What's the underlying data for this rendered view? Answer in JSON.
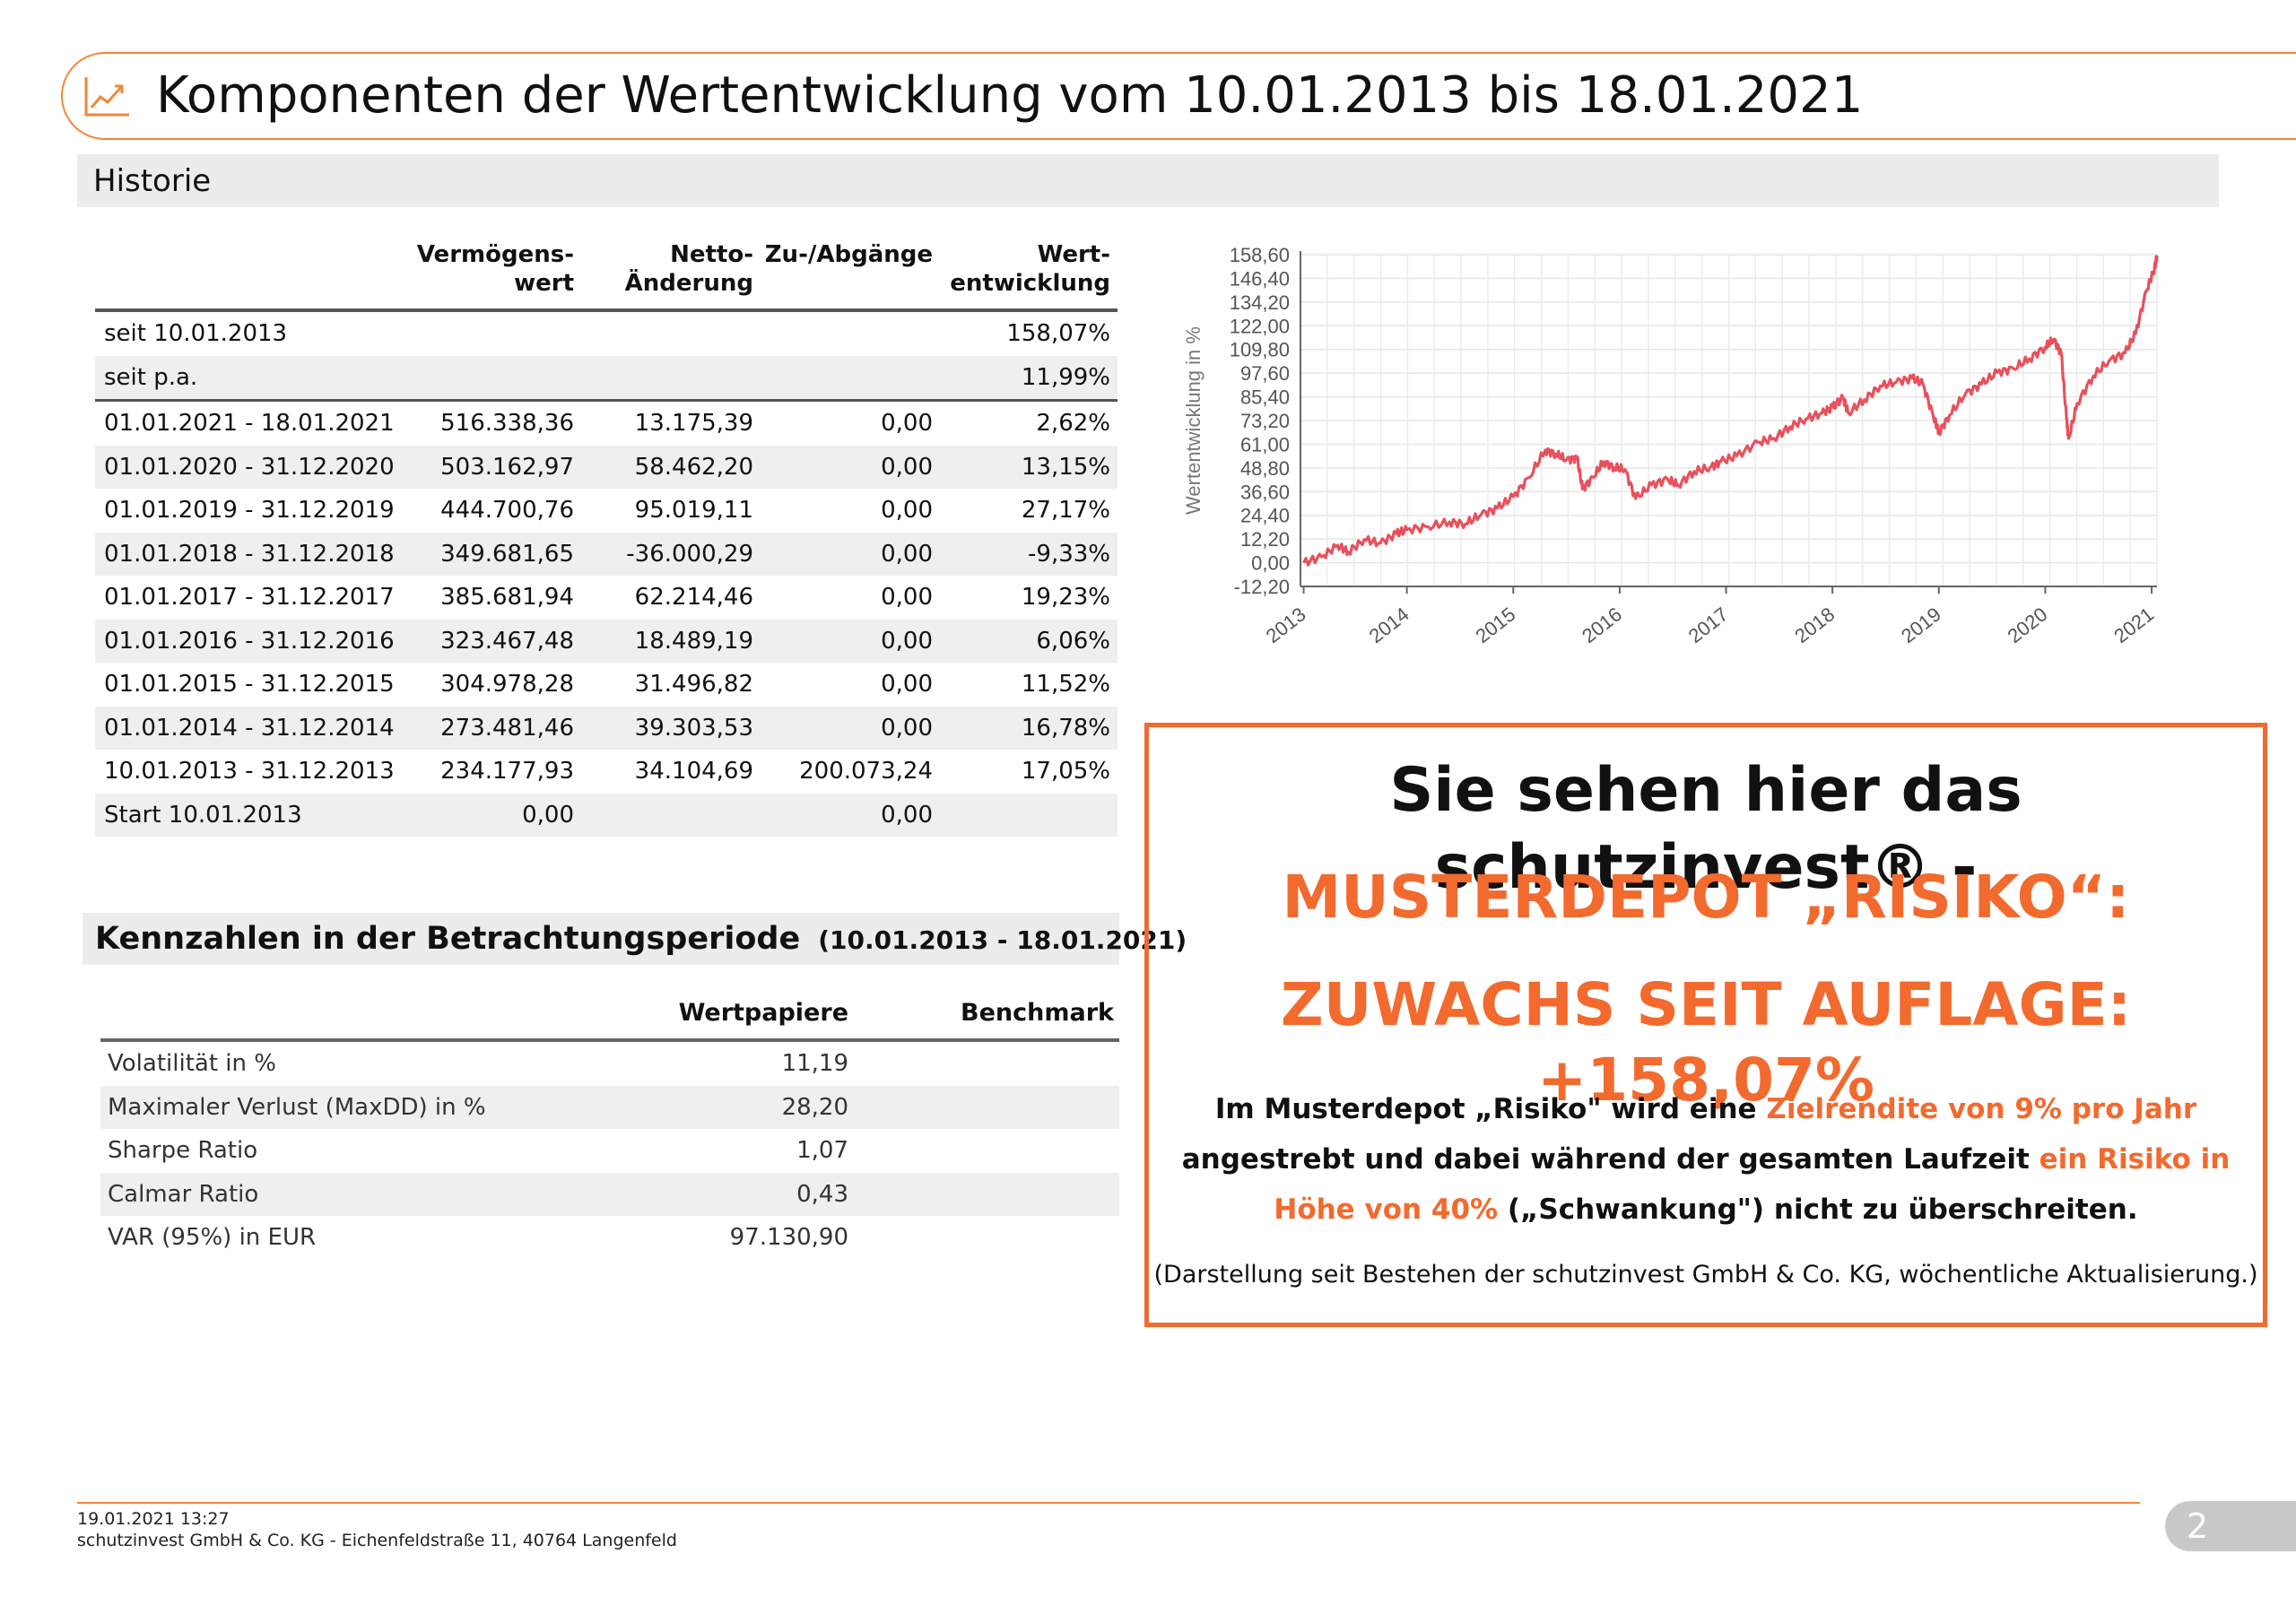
{
  "header": {
    "title": "Komponenten der Wertentwicklung vom 10.01.2013 bis 18.01.2021",
    "icon": "line-chart-icon"
  },
  "historie": {
    "title": "Historie",
    "columns": [
      "",
      "Vermögens-\nwert",
      "Netto-\nÄnderung",
      "Zu-/Abgänge",
      "Wert-\nentwicklung"
    ],
    "rows": [
      [
        "seit 10.01.2013",
        "",
        "",
        "",
        "158,07%"
      ],
      [
        "seit p.a.",
        "",
        "",
        "",
        "11,99%"
      ],
      [
        "01.01.2021 - 18.01.2021",
        "516.338,36",
        "13.175,39",
        "0,00",
        "2,62%"
      ],
      [
        "01.01.2020 - 31.12.2020",
        "503.162,97",
        "58.462,20",
        "0,00",
        "13,15%"
      ],
      [
        "01.01.2019 - 31.12.2019",
        "444.700,76",
        "95.019,11",
        "0,00",
        "27,17%"
      ],
      [
        "01.01.2018 - 31.12.2018",
        "349.681,65",
        "-36.000,29",
        "0,00",
        "-9,33%"
      ],
      [
        "01.01.2017 - 31.12.2017",
        "385.681,94",
        "62.214,46",
        "0,00",
        "19,23%"
      ],
      [
        "01.01.2016 - 31.12.2016",
        "323.467,48",
        "18.489,19",
        "0,00",
        "6,06%"
      ],
      [
        "01.01.2015 - 31.12.2015",
        "304.978,28",
        "31.496,82",
        "0,00",
        "11,52%"
      ],
      [
        "01.01.2014 - 31.12.2014",
        "273.481,46",
        "39.303,53",
        "0,00",
        "16,78%"
      ],
      [
        "10.01.2013 - 31.12.2013",
        "234.177,93",
        "34.104,69",
        "200.073,24",
        "17,05%"
      ],
      [
        "Start 10.01.2013",
        "0,00",
        "",
        "0,00",
        ""
      ]
    ]
  },
  "chart_data": {
    "type": "line",
    "title": "",
    "xlabel": "",
    "ylabel": "Wertentwicklung in %",
    "x_ticks": [
      "2013",
      "2014",
      "2015",
      "2016",
      "2017",
      "2018",
      "2019",
      "2020",
      "2021"
    ],
    "y_ticks": [
      "158,60",
      "146,40",
      "134,20",
      "122,00",
      "109,80",
      "97,60",
      "85,40",
      "73,20",
      "61,00",
      "48,80",
      "36,60",
      "24,40",
      "12,20",
      "0,00",
      "-12,20"
    ],
    "ylim": [
      -12.2,
      158.6
    ],
    "grid": true,
    "line_color": "#e8505b",
    "series": [
      {
        "values": [
          [
            2013.03,
            0.0
          ],
          [
            2013.2,
            3.0
          ],
          [
            2013.35,
            9.0
          ],
          [
            2013.45,
            5.5
          ],
          [
            2013.6,
            12.0
          ],
          [
            2013.75,
            10.0
          ],
          [
            2013.9,
            15.0
          ],
          [
            2014.0,
            17.0
          ],
          [
            2014.2,
            18.5
          ],
          [
            2014.4,
            21.0
          ],
          [
            2014.55,
            20.0
          ],
          [
            2014.7,
            25.0
          ],
          [
            2014.85,
            28.0
          ],
          [
            2015.0,
            34.0
          ],
          [
            2015.15,
            44.0
          ],
          [
            2015.3,
            58.0
          ],
          [
            2015.4,
            56.0
          ],
          [
            2015.5,
            53.0
          ],
          [
            2015.6,
            54.0
          ],
          [
            2015.65,
            38.0
          ],
          [
            2015.75,
            44.0
          ],
          [
            2015.85,
            52.0
          ],
          [
            2015.95,
            49.0
          ],
          [
            2016.05,
            48.0
          ],
          [
            2016.15,
            33.0
          ],
          [
            2016.3,
            40.0
          ],
          [
            2016.45,
            43.0
          ],
          [
            2016.55,
            40.0
          ],
          [
            2016.7,
            47.0
          ],
          [
            2016.85,
            49.0
          ],
          [
            2016.95,
            52.0
          ],
          [
            2017.1,
            55.0
          ],
          [
            2017.3,
            62.0
          ],
          [
            2017.45,
            64.0
          ],
          [
            2017.6,
            70.0
          ],
          [
            2017.75,
            74.0
          ],
          [
            2017.9,
            77.0
          ],
          [
            2018.0,
            80.0
          ],
          [
            2018.1,
            85.0
          ],
          [
            2018.15,
            77.0
          ],
          [
            2018.3,
            84.0
          ],
          [
            2018.45,
            91.0
          ],
          [
            2018.6,
            93.0
          ],
          [
            2018.75,
            95.0
          ],
          [
            2018.85,
            92.0
          ],
          [
            2018.95,
            75.0
          ],
          [
            2019.0,
            67.0
          ],
          [
            2019.1,
            76.0
          ],
          [
            2019.25,
            87.0
          ],
          [
            2019.4,
            92.0
          ],
          [
            2019.55,
            98.0
          ],
          [
            2019.7,
            100.0
          ],
          [
            2019.85,
            105.0
          ],
          [
            2020.0,
            111.0
          ],
          [
            2020.08,
            115.0
          ],
          [
            2020.15,
            108.0
          ],
          [
            2020.2,
            74.0
          ],
          [
            2020.22,
            64.0
          ],
          [
            2020.3,
            82.0
          ],
          [
            2020.45,
            96.0
          ],
          [
            2020.6,
            104.0
          ],
          [
            2020.75,
            108.0
          ],
          [
            2020.85,
            118.0
          ],
          [
            2020.95,
            140.0
          ],
          [
            2021.02,
            150.0
          ],
          [
            2021.05,
            158.07
          ]
        ]
      }
    ]
  },
  "kennzahlen": {
    "title": "Kennzahlen in der Betrachtungsperiode",
    "period": "(10.01.2013 - 18.01.2021)",
    "columns": [
      "",
      "Wertpapiere",
      "Benchmark"
    ],
    "rows": [
      [
        "Volatilität in %",
        "11,19",
        ""
      ],
      [
        "Maximaler Verlust (MaxDD) in %",
        "28,20",
        ""
      ],
      [
        "Sharpe Ratio",
        "1,07",
        ""
      ],
      [
        "Calmar Ratio",
        "0,43",
        ""
      ],
      [
        "VAR (95%) in EUR",
        "97.130,90",
        ""
      ]
    ]
  },
  "promo": {
    "line1": "Sie sehen hier das schutzinvest® -",
    "line2": "MUSTERDEPOT „RISIKO“:",
    "line3": "ZUWACHS SEIT AUFLAGE: +158,07%",
    "body_1": "Im Musterdepot „Risiko\" wird eine ",
    "body_hl1": "Zielrendite von 9% pro Jahr",
    "body_2": " angestrebt und dabei während der gesamten Laufzeit ",
    "body_hl2": "ein Risiko in Höhe von 40%",
    "body_3": " („Schwankung\") nicht zu überschreiten.",
    "note": "(Darstellung seit Bestehen der schutzinvest GmbH & Co. KG, wöchentliche Aktualisierung.)",
    "accent_color": "#f26a2e"
  },
  "footer": {
    "date": "19.01.2021 13:27",
    "address": "schutzinvest GmbH & Co. KG - Eichenfeldstraße 11, 40764 Langenfeld",
    "page": "2"
  }
}
